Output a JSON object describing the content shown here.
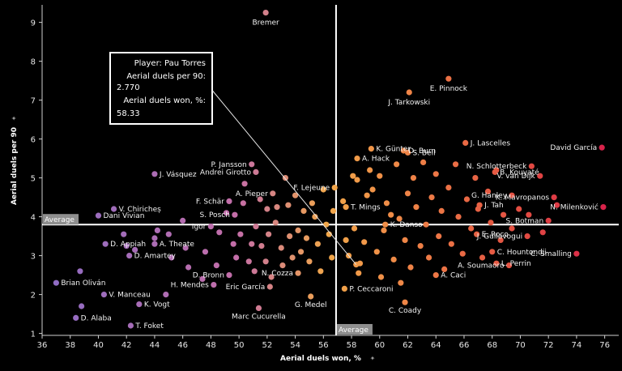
{
  "chart_data": {
    "type": "scatter",
    "xlabel": "Aerial duels won, %",
    "ylabel": "Aerial duels per 90",
    "xlim": [
      36,
      77
    ],
    "ylim": [
      0.95,
      9.45
    ],
    "x_ticks": [
      36,
      38,
      40,
      42,
      44,
      46,
      48,
      50,
      52,
      54,
      56,
      58,
      60,
      62,
      64,
      66,
      68,
      70,
      72,
      74,
      76
    ],
    "y_ticks": [
      1,
      2,
      3,
      4,
      5,
      6,
      7,
      8,
      9
    ],
    "average": {
      "x": 56.9,
      "y": 3.8,
      "x_label": "Average",
      "y_label": "Average"
    },
    "colors": {
      "background": "#000000",
      "low": "#8c6bc2",
      "mid": "#f2a64a",
      "high": "#e8294a",
      "tooltip_border": "#ffffff",
      "avg_tag_bg": "#8e8e8e"
    },
    "tooltip": {
      "player_label": "Player:",
      "player_value": "Pau Torres",
      "metric1_label": "Aerial duels per 90:",
      "metric1_value": "2.770",
      "metric2_label": "Aerial duels won, %:",
      "metric2_value": "58.33",
      "target": {
        "x": 58.33,
        "y": 2.77
      }
    },
    "labeled_points": [
      {
        "name": "Bremer",
        "x": 51.9,
        "y": 9.25
      },
      {
        "name": "E. Pinnock",
        "x": 64.9,
        "y": 7.55
      },
      {
        "name": "J. Tarkowski",
        "x": 62.1,
        "y": 7.2
      },
      {
        "name": "D. Burn",
        "x": 61.7,
        "y": 5.7
      },
      {
        "name": "K. Günter",
        "x": 59.4,
        "y": 5.75
      },
      {
        "name": "J. Lascelles",
        "x": 66.1,
        "y": 5.9
      },
      {
        "name": "S. Bell",
        "x": 62.0,
        "y": 5.65
      },
      {
        "name": "David García",
        "x": 75.8,
        "y": 5.78
      },
      {
        "name": "A. Hack",
        "x": 58.4,
        "y": 5.5
      },
      {
        "name": "N. Schlotterbeck",
        "x": 70.8,
        "y": 5.3
      },
      {
        "name": "P. Jansson",
        "x": 50.9,
        "y": 5.35
      },
      {
        "name": "B. Kouyaté",
        "x": 68.2,
        "y": 5.15
      },
      {
        "name": "V. van Dijk",
        "x": 71.4,
        "y": 5.05
      },
      {
        "name": "Andrei Girotto",
        "x": 51.2,
        "y": 5.15
      },
      {
        "name": "J. Vásquez",
        "x": 44.0,
        "y": 5.1
      },
      {
        "name": "A. Pieper",
        "x": 52.4,
        "y": 4.6
      },
      {
        "name": "F. Lejeune",
        "x": 56.8,
        "y": 4.75
      },
      {
        "name": "G. Hanley",
        "x": 69.4,
        "y": 4.55
      },
      {
        "name": "K. Mavropanos",
        "x": 72.4,
        "y": 4.5
      },
      {
        "name": "F. Schär",
        "x": 49.3,
        "y": 4.4
      },
      {
        "name": "T. Mings",
        "x": 57.6,
        "y": 4.25
      },
      {
        "name": "J. Tah",
        "x": 67.1,
        "y": 4.3
      },
      {
        "name": "N. Milenković",
        "x": 75.9,
        "y": 4.25
      },
      {
        "name": "V. Chiricheș",
        "x": 41.1,
        "y": 4.2
      },
      {
        "name": "S. Posch",
        "x": 49.7,
        "y": 4.05
      },
      {
        "name": "Dani Vivian",
        "x": 40.0,
        "y": 4.03
      },
      {
        "name": "K. Danso",
        "x": 60.4,
        "y": 3.8
      },
      {
        "name": "S. Botman",
        "x": 72.0,
        "y": 3.9
      },
      {
        "name": "Igor",
        "x": 48.0,
        "y": 3.75
      },
      {
        "name": "A. Theate",
        "x": 44.0,
        "y": 3.3
      },
      {
        "name": "E. Roco",
        "x": 66.9,
        "y": 3.55
      },
      {
        "name": "J. Guilavogui",
        "x": 70.5,
        "y": 3.5
      },
      {
        "name": "D. Appiah",
        "x": 40.5,
        "y": 3.3
      },
      {
        "name": "C. Hountondji",
        "x": 68.0,
        "y": 3.1
      },
      {
        "name": "D. Amartey",
        "x": 42.2,
        "y": 3.0
      },
      {
        "name": "L. Perrin",
        "x": 68.3,
        "y": 2.8
      },
      {
        "name": "C. Smalling",
        "x": 74.0,
        "y": 3.05
      },
      {
        "name": "N. Cozza",
        "x": 54.2,
        "y": 2.55
      },
      {
        "name": "D. Bronn",
        "x": 49.3,
        "y": 2.5
      },
      {
        "name": "A. Soumaoro",
        "x": 69.2,
        "y": 2.75
      },
      {
        "name": "A. Caci",
        "x": 64.0,
        "y": 2.5
      },
      {
        "name": "Brian Oliván",
        "x": 37.0,
        "y": 2.3
      },
      {
        "name": "H. Mendes",
        "x": 48.2,
        "y": 2.25
      },
      {
        "name": "Eric García",
        "x": 52.2,
        "y": 2.2
      },
      {
        "name": "P. Ceccaroni",
        "x": 57.5,
        "y": 2.15
      },
      {
        "name": "V. Manceau",
        "x": 40.4,
        "y": 2.0
      },
      {
        "name": "G. Medel",
        "x": 55.1,
        "y": 1.95
      },
      {
        "name": "C. Coady",
        "x": 61.8,
        "y": 1.8
      },
      {
        "name": "K. Vogt",
        "x": 42.9,
        "y": 1.75
      },
      {
        "name": "Marc Cucurella",
        "x": 51.4,
        "y": 1.65
      },
      {
        "name": "D. Alaba",
        "x": 38.4,
        "y": 1.4
      },
      {
        "name": "T. Foket",
        "x": 42.3,
        "y": 1.2
      }
    ],
    "unlabeled_points": [
      [
        38.7,
        2.6
      ],
      [
        38.8,
        1.7
      ],
      [
        41.8,
        3.55
      ],
      [
        42.0,
        3.25
      ],
      [
        42.6,
        3.15
      ],
      [
        44.2,
        3.65
      ],
      [
        44.0,
        3.45
      ],
      [
        45.0,
        3.55
      ],
      [
        45.2,
        2.95
      ],
      [
        44.8,
        2.0
      ],
      [
        46.2,
        3.2
      ],
      [
        46.4,
        2.7
      ],
      [
        46.0,
        3.9
      ],
      [
        47.6,
        3.1
      ],
      [
        47.4,
        2.4
      ],
      [
        48.4,
        2.75
      ],
      [
        48.6,
        3.6
      ],
      [
        49.1,
        4.1
      ],
      [
        49.6,
        3.3
      ],
      [
        49.8,
        2.95
      ],
      [
        50.1,
        3.55
      ],
      [
        50.3,
        4.35
      ],
      [
        50.4,
        4.85
      ],
      [
        50.7,
        2.85
      ],
      [
        50.9,
        3.3
      ],
      [
        51.2,
        3.75
      ],
      [
        51.1,
        2.6
      ],
      [
        51.5,
        4.45
      ],
      [
        51.6,
        3.25
      ],
      [
        51.9,
        2.85
      ],
      [
        52.1,
        3.55
      ],
      [
        52.0,
        4.2
      ],
      [
        52.3,
        2.45
      ],
      [
        52.6,
        3.85
      ],
      [
        52.7,
        4.25
      ],
      [
        53.0,
        3.2
      ],
      [
        53.1,
        2.75
      ],
      [
        53.3,
        5.0
      ],
      [
        53.5,
        4.3
      ],
      [
        53.6,
        3.5
      ],
      [
        53.8,
        2.95
      ],
      [
        54.0,
        4.55
      ],
      [
        54.2,
        3.65
      ],
      [
        54.4,
        3.1
      ],
      [
        54.6,
        4.15
      ],
      [
        54.8,
        3.45
      ],
      [
        55.0,
        2.85
      ],
      [
        55.2,
        4.35
      ],
      [
        55.4,
        4.0
      ],
      [
        55.6,
        3.3
      ],
      [
        55.8,
        2.6
      ],
      [
        56.0,
        4.7
      ],
      [
        56.2,
        3.8
      ],
      [
        56.4,
        3.55
      ],
      [
        56.6,
        2.95
      ],
      [
        56.7,
        4.15
      ],
      [
        57.4,
        4.4
      ],
      [
        57.6,
        3.4
      ],
      [
        57.8,
        3.0
      ],
      [
        58.1,
        5.05
      ],
      [
        58.2,
        3.7
      ],
      [
        58.4,
        4.95
      ],
      [
        58.5,
        2.55
      ],
      [
        58.6,
        2.8
      ],
      [
        58.9,
        3.35
      ],
      [
        59.1,
        4.55
      ],
      [
        59.3,
        5.2
      ],
      [
        59.5,
        4.7
      ],
      [
        59.8,
        3.1
      ],
      [
        60.0,
        5.05
      ],
      [
        60.1,
        2.45
      ],
      [
        60.3,
        3.65
      ],
      [
        60.5,
        4.35
      ],
      [
        60.8,
        4.05
      ],
      [
        61.0,
        2.9
      ],
      [
        61.2,
        5.35
      ],
      [
        61.4,
        3.95
      ],
      [
        61.5,
        2.3
      ],
      [
        61.8,
        3.4
      ],
      [
        62.0,
        4.6
      ],
      [
        62.2,
        2.7
      ],
      [
        62.4,
        5.0
      ],
      [
        62.6,
        4.25
      ],
      [
        62.9,
        3.25
      ],
      [
        63.1,
        5.4
      ],
      [
        63.3,
        3.8
      ],
      [
        63.5,
        2.95
      ],
      [
        63.7,
        4.5
      ],
      [
        64.0,
        5.1
      ],
      [
        64.2,
        3.5
      ],
      [
        64.4,
        4.15
      ],
      [
        64.6,
        2.65
      ],
      [
        64.9,
        4.75
      ],
      [
        65.1,
        3.3
      ],
      [
        65.4,
        5.35
      ],
      [
        65.6,
        4.0
      ],
      [
        65.9,
        3.05
      ],
      [
        66.2,
        4.45
      ],
      [
        66.5,
        3.7
      ],
      [
        66.8,
        5.0
      ],
      [
        67.0,
        4.2
      ],
      [
        67.3,
        2.95
      ],
      [
        67.7,
        4.65
      ],
      [
        67.9,
        3.85
      ],
      [
        68.3,
        5.2
      ],
      [
        68.6,
        3.4
      ],
      [
        68.8,
        4.05
      ],
      [
        69.4,
        3.7
      ],
      [
        69.9,
        4.2
      ],
      [
        70.6,
        4.05
      ],
      [
        71.6,
        3.6
      ],
      [
        72.6,
        4.3
      ]
    ]
  }
}
